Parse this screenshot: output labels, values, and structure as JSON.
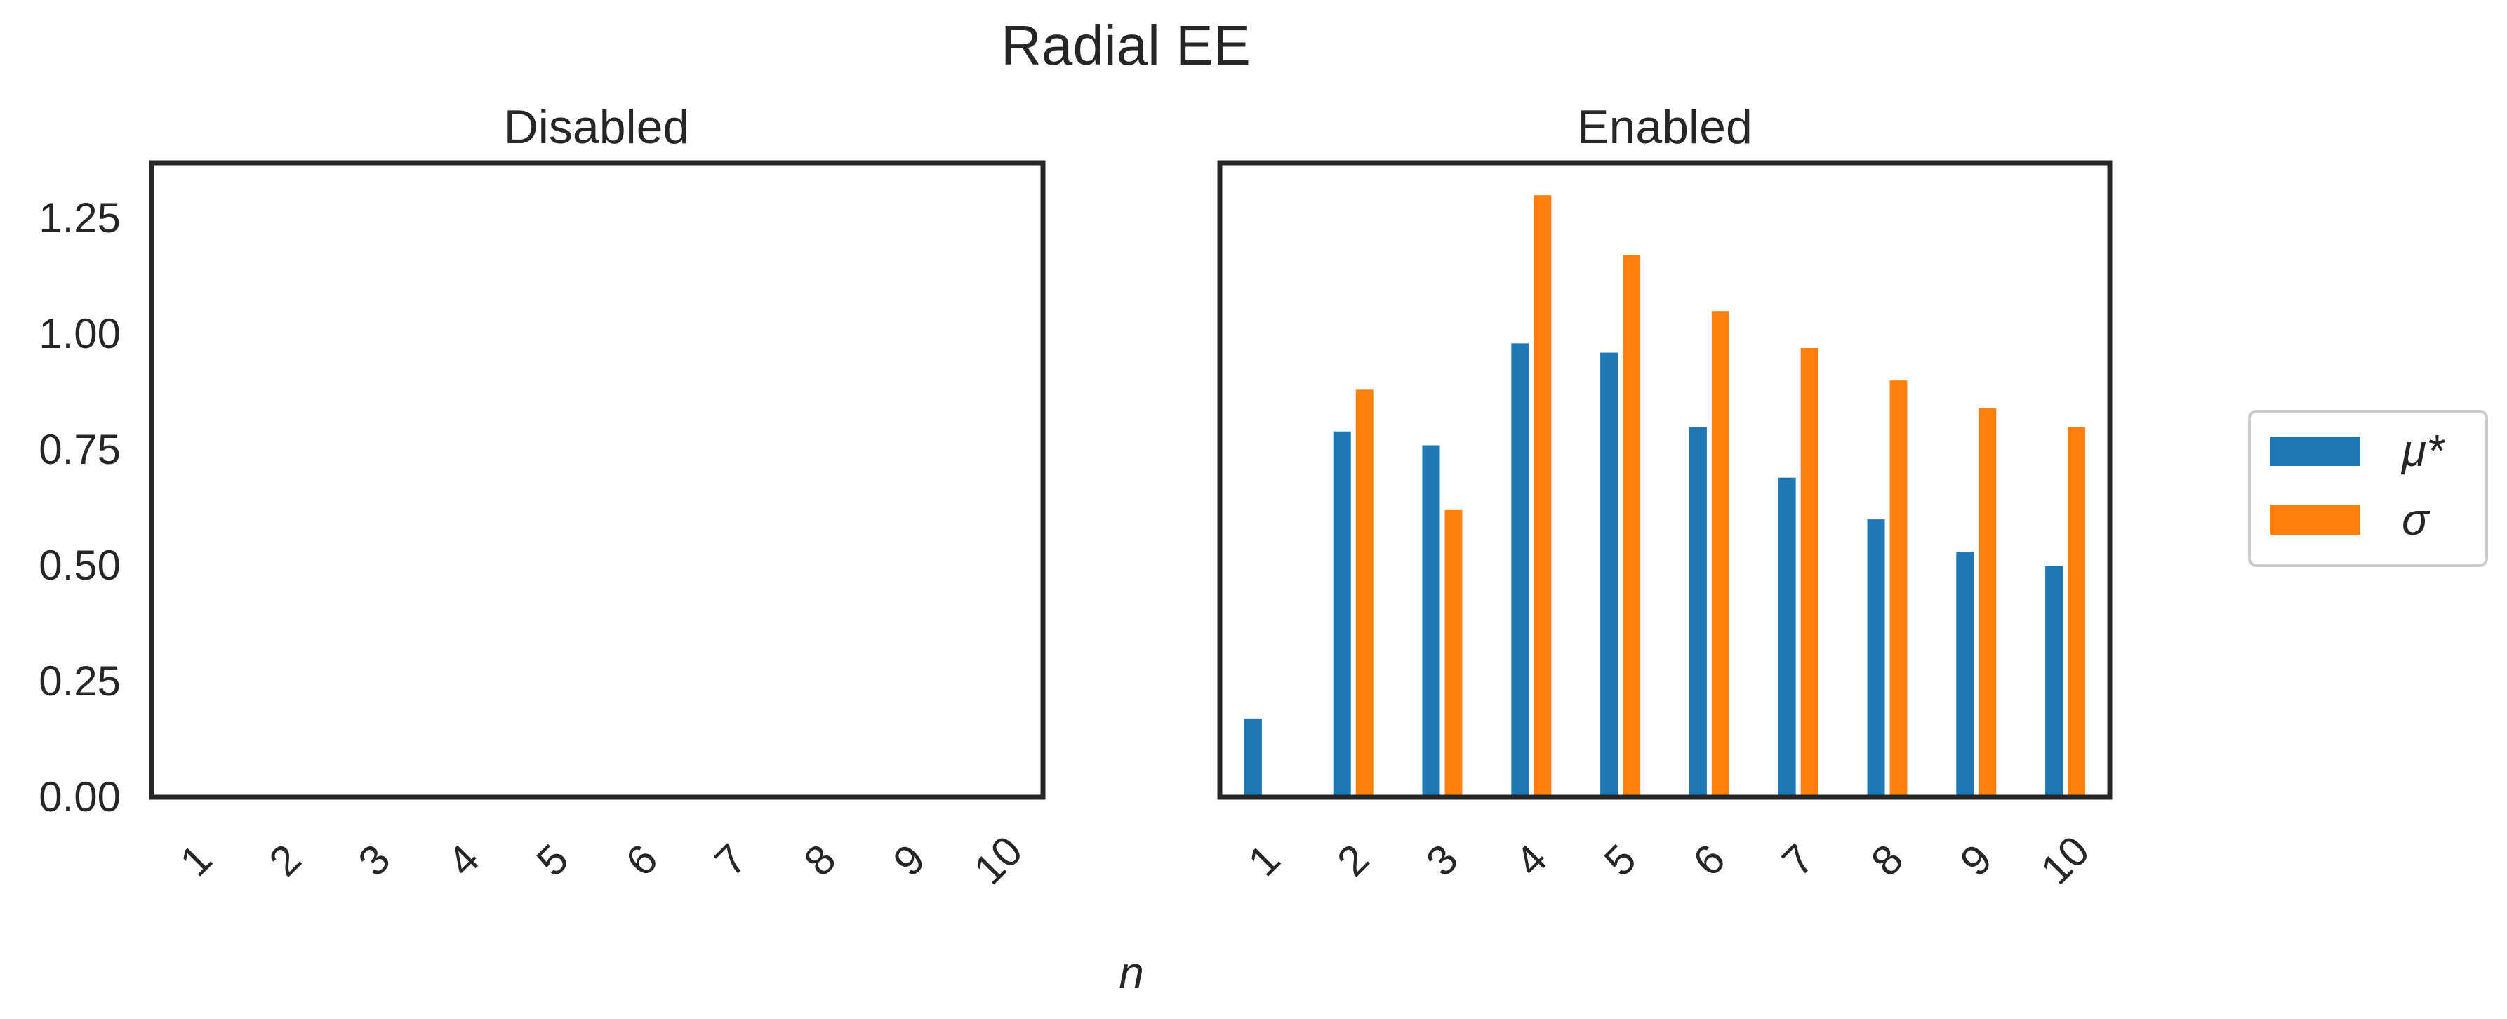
{
  "chart_data": {
    "type": "bar",
    "title": "Radial EE",
    "xlabel": "n",
    "ylabel": "",
    "ylim": [
      0,
      1.37
    ],
    "yticks": [
      "0.00",
      "0.25",
      "0.50",
      "0.75",
      "1.00",
      "1.25"
    ],
    "grid": false,
    "legend_position": "right",
    "series_meta": [
      {
        "name": "μ*",
        "color": "#1f77b4"
      },
      {
        "name": "σ",
        "color": "#ff7f0e"
      }
    ],
    "panels": [
      {
        "title": "Disabled",
        "categories": [
          "1",
          "2",
          "3",
          "4",
          "5",
          "6",
          "7",
          "8",
          "9",
          "10"
        ],
        "series": [
          {
            "name": "μ*",
            "values": []
          },
          {
            "name": "σ",
            "values": []
          }
        ]
      },
      {
        "title": "Enabled",
        "categories": [
          "1",
          "2",
          "3",
          "4",
          "5",
          "6",
          "7",
          "8",
          "9",
          "10"
        ],
        "series": [
          {
            "name": "μ*",
            "values": [
              0.17,
              0.79,
              0.76,
              0.98,
              0.96,
              0.8,
              0.69,
              0.6,
              0.53,
              0.5
            ]
          },
          {
            "name": "σ",
            "values": [
              0.0,
              0.88,
              0.62,
              1.3,
              1.17,
              1.05,
              0.97,
              0.9,
              0.84,
              0.8
            ]
          }
        ]
      }
    ]
  }
}
